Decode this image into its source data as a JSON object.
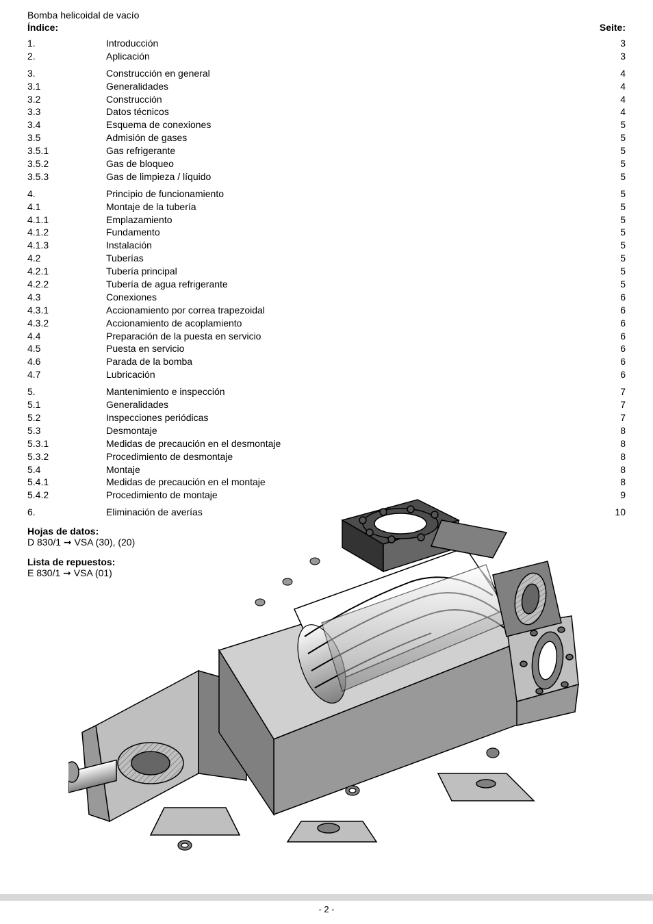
{
  "document_title": "Bomba helicoidal de vacío",
  "header_left": "Índice:",
  "header_right": "Seite:",
  "toc_groups": [
    [
      {
        "num": "1.",
        "title": "Introducción",
        "page": "3"
      },
      {
        "num": "2.",
        "title": "Aplicación",
        "page": "3"
      }
    ],
    [
      {
        "num": "3.",
        "title": "Construcción en general",
        "page": "4"
      },
      {
        "num": "3.1",
        "title": "Generalidades",
        "page": "4"
      },
      {
        "num": "3.2",
        "title": "Construcción",
        "page": "4"
      },
      {
        "num": "3.3",
        "title": "Datos técnicos",
        "page": "4"
      },
      {
        "num": "3.4",
        "title": "Esquema de conexiones",
        "page": "5"
      },
      {
        "num": "3.5",
        "title": "Admisión de gases",
        "page": "5"
      },
      {
        "num": "3.5.1",
        "title": "Gas refrigerante",
        "page": "5"
      },
      {
        "num": "3.5.2",
        "title": "Gas de bloqueo",
        "page": "5"
      },
      {
        "num": "3.5.3",
        "title": "Gas de limpieza / líquido",
        "page": "5"
      }
    ],
    [
      {
        "num": "4.",
        "title": "Principio de funcionamiento",
        "page": "5"
      },
      {
        "num": "4.1",
        "title": "Montaje de la tubería",
        "page": "5"
      },
      {
        "num": "4.1.1",
        "title": "Emplazamiento",
        "page": "5"
      },
      {
        "num": "4.1.2",
        "title": "Fundamento",
        "page": "5"
      },
      {
        "num": "4.1.3",
        "title": "Instalación",
        "page": "5"
      },
      {
        "num": "4.2",
        "title": "Tuberías",
        "page": "5"
      },
      {
        "num": "4.2.1",
        "title": "Tubería principal",
        "page": "5"
      },
      {
        "num": "4.2.2",
        "title": "Tubería de agua refrigerante",
        "page": "5"
      },
      {
        "num": "4.3",
        "title": "Conexiones",
        "page": "6"
      },
      {
        "num": "4.3.1",
        "title": "Accionamiento por correa trapezoidal",
        "page": "6"
      },
      {
        "num": "4.3.2",
        "title": "Accionamiento de acoplamiento",
        "page": "6"
      },
      {
        "num": "4.4",
        "title": "Preparación de la puesta en servicio",
        "page": "6"
      },
      {
        "num": "4.5",
        "title": "Puesta en servicio",
        "page": "6"
      },
      {
        "num": "4.6",
        "title": "Parada de la bomba",
        "page": "6"
      },
      {
        "num": "4.7",
        "title": "Lubricación",
        "page": "6"
      }
    ],
    [
      {
        "num": "5.",
        "title": "Mantenimiento e inspección",
        "page": "7"
      },
      {
        "num": "5.1",
        "title": "Generalidades",
        "page": "7"
      },
      {
        "num": "5.2",
        "title": "Inspecciones periódicas",
        "page": "7"
      },
      {
        "num": "5.3",
        "title": "Desmontaje",
        "page": "8"
      },
      {
        "num": "5.3.1",
        "title": "Medidas de precaución en el desmontaje",
        "page": "8"
      },
      {
        "num": "5.3.2",
        "title": "Procedimiento de desmontaje",
        "page": "8"
      },
      {
        "num": "5.4",
        "title": "Montaje",
        "page": "8"
      },
      {
        "num": "5.4.1",
        "title": "Medidas de precaución en el montaje",
        "page": "8"
      },
      {
        "num": "5.4.2",
        "title": "Procedimiento de montaje",
        "page": "9"
      }
    ],
    [
      {
        "num": "6.",
        "title": "Eliminación de averías",
        "page": "10"
      }
    ]
  ],
  "extras": {
    "datos_label": "Hojas de datos:",
    "datos_line": "D 830/1 ➞ VSA (30), (20)",
    "repuestos_label": "Lista de repuestos:",
    "repuestos_line": "E 830/1 ➞ VSA (01)"
  },
  "page_number": "- 2 -",
  "illustration": {
    "type": "technical-cutaway",
    "subject": "helical vacuum pump cutaway",
    "stroke_color": "#000000",
    "fill_light": "#ffffff",
    "fill_mid": "#bfbfbf",
    "fill_dark": "#808080",
    "fill_darkest": "#4d4d4d"
  }
}
